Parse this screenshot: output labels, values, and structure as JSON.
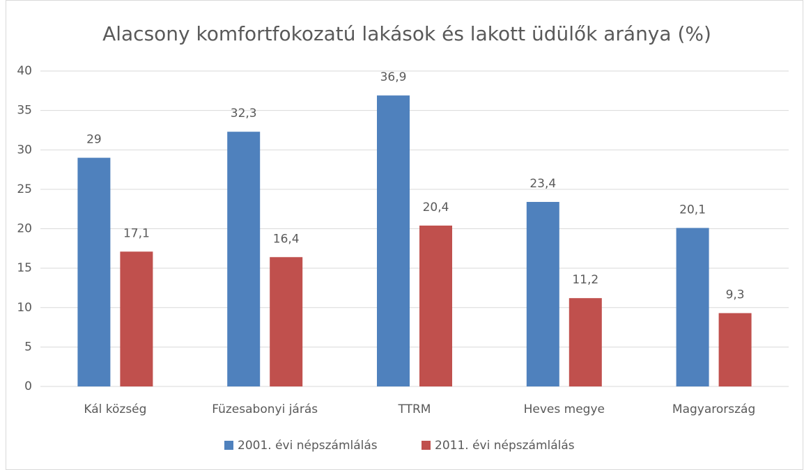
{
  "chart_data": {
    "type": "bar",
    "title": "Alacsony komfortfokozatú lakások és lakott üdülők aránya (%)",
    "categories": [
      "Kál község",
      "Füzesabonyi járás",
      "TTRM",
      "Heves megye",
      "Magyarország"
    ],
    "series": [
      {
        "name": "2001. évi népszámlálás",
        "color": "#4f81bd",
        "values": [
          29,
          32.3,
          36.9,
          23.4,
          20.1
        ],
        "value_labels": [
          "29",
          "32,3",
          "36,9",
          "23,4",
          "20,1"
        ]
      },
      {
        "name": "2011. évi népszámlálás",
        "color": "#c0504d",
        "values": [
          17.1,
          16.4,
          20.4,
          11.2,
          9.3
        ],
        "value_labels": [
          "17,1",
          "16,4",
          "20,4",
          "11,2",
          "9,3"
        ]
      }
    ],
    "ylim": [
      0,
      40
    ],
    "yticks": [
      0,
      5,
      10,
      15,
      20,
      25,
      30,
      35,
      40
    ],
    "grid": true,
    "legend": "bottom"
  }
}
